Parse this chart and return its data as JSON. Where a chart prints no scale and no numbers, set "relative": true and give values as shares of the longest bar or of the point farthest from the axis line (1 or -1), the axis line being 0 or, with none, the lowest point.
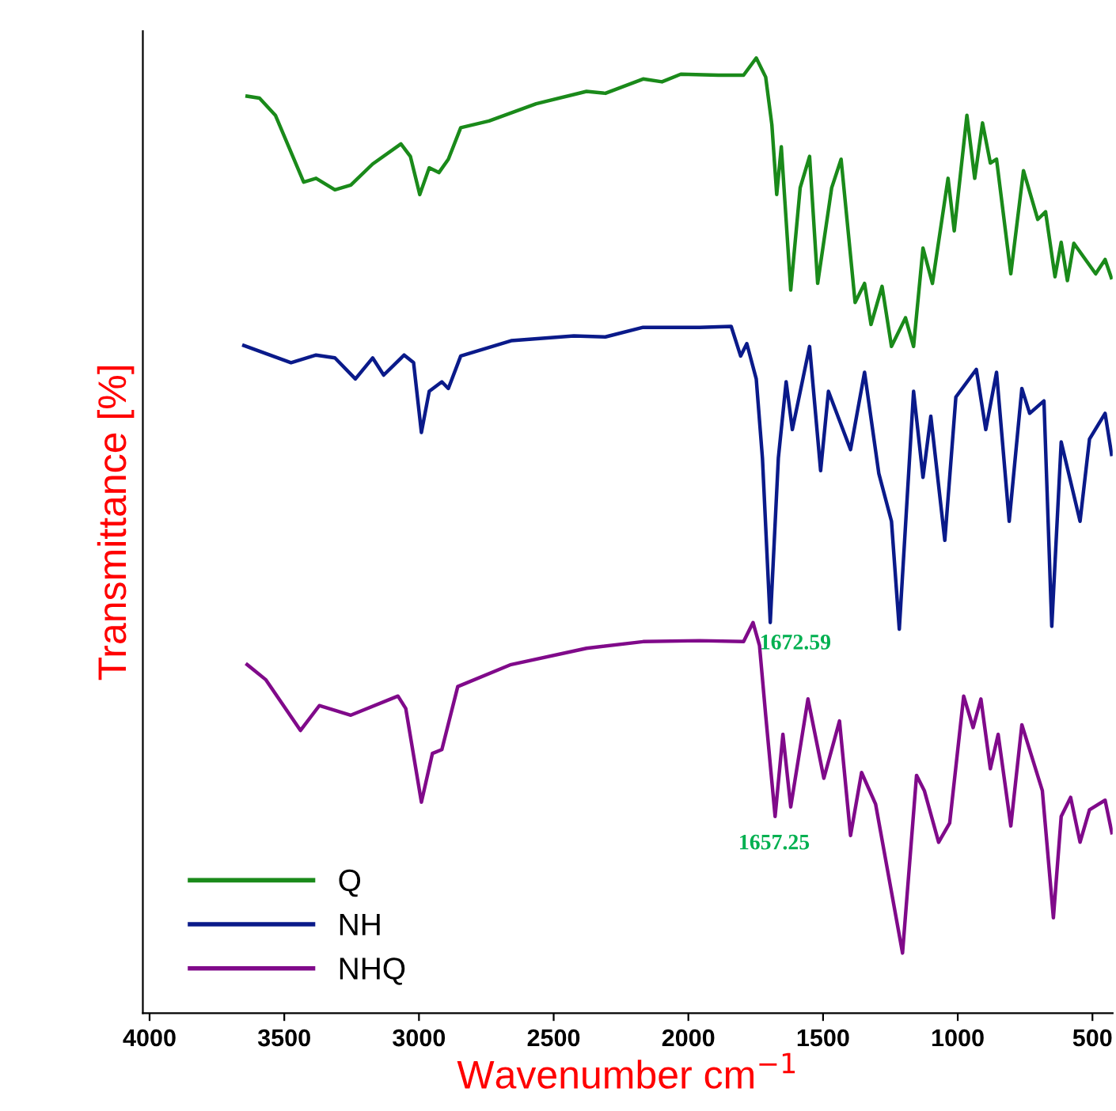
{
  "chart_data": {
    "type": "line",
    "relative": true,
    "xlabel": "Wavenumber cm$^{−1}$",
    "ylabel": "Transmittance [%]",
    "xlim": [
      4025,
      425
    ],
    "xticks": [
      4000,
      3500,
      3000,
      2500,
      2000,
      1500,
      1000,
      500
    ],
    "grid": false,
    "legend": "bottom left",
    "marker": "none",
    "line_style": "solid",
    "annotations": [
      "1672.59",
      {
        "text": "1657.25",
        "x": 1657.25,
        "y": 0.206
      }
    ],
    "series": [
      {
        "name": "Q",
        "color": "#1a8a1a",
        "x": [
          3638,
          3592,
          3533,
          3428,
          3382,
          3312,
          3253,
          3172,
          3067,
          3032,
          2997,
          2962,
          2926,
          2891,
          2845,
          2740,
          2565,
          2378,
          2308,
          2168,
          2098,
          2028,
          1888,
          1795,
          1748,
          1713,
          1690,
          1672,
          1655,
          1620,
          1585,
          1550,
          1520,
          1468,
          1433,
          1381,
          1346,
          1322,
          1281,
          1246,
          1194,
          1164,
          1129,
          1094,
          1036,
          1013,
          966,
          937,
          908,
          879,
          856,
          803,
          756,
          703,
          674,
          639,
          616,
          593,
          569,
          488,
          453,
          430
        ],
        "values": [
          0.96,
          0.958,
          0.94,
          0.87,
          0.874,
          0.862,
          0.867,
          0.889,
          0.91,
          0.897,
          0.857,
          0.885,
          0.88,
          0.894,
          0.927,
          0.934,
          0.952,
          0.965,
          0.963,
          0.978,
          0.975,
          0.983,
          0.982,
          0.982,
          1.0,
          0.98,
          0.93,
          0.857,
          0.907,
          0.757,
          0.864,
          0.897,
          0.764,
          0.864,
          0.894,
          0.744,
          0.764,
          0.721,
          0.761,
          0.698,
          0.728,
          0.698,
          0.801,
          0.764,
          0.874,
          0.819,
          0.94,
          0.874,
          0.932,
          0.89,
          0.894,
          0.774,
          0.882,
          0.831,
          0.839,
          0.771,
          0.807,
          0.767,
          0.806,
          0.774,
          0.789,
          0.77
        ]
      },
      {
        "name": "NH",
        "color": "#0a1a8a",
        "x": [
          3650,
          3475,
          3382,
          3312,
          3236,
          3172,
          3131,
          3055,
          3020,
          2991,
          2962,
          2915,
          2891,
          2845,
          2658,
          2425,
          2308,
          2168,
          1958,
          1841,
          1806,
          1783,
          1748,
          1725,
          1696,
          1666,
          1637,
          1614,
          1550,
          1509,
          1480,
          1398,
          1346,
          1293,
          1246,
          1217,
          1164,
          1129,
          1100,
          1048,
          1007,
          931,
          896,
          856,
          809,
          762,
          733,
          680,
          651,
          616,
          546,
          511,
          453,
          429
        ],
        "values": [
          0.699,
          0.681,
          0.689,
          0.686,
          0.664,
          0.686,
          0.668,
          0.689,
          0.681,
          0.608,
          0.651,
          0.661,
          0.654,
          0.688,
          0.704,
          0.709,
          0.708,
          0.718,
          0.718,
          0.719,
          0.688,
          0.701,
          0.664,
          0.581,
          0.409,
          0.581,
          0.661,
          0.611,
          0.698,
          0.568,
          0.651,
          0.59,
          0.671,
          0.565,
          0.515,
          0.402,
          0.651,
          0.561,
          0.625,
          0.495,
          0.645,
          0.674,
          0.611,
          0.671,
          0.515,
          0.654,
          0.628,
          0.641,
          0.405,
          0.598,
          0.515,
          0.601,
          0.628,
          0.585
        ]
      },
      {
        "name": "NHQ",
        "color": "#800a8a",
        "x": [
          3638,
          3568,
          3440,
          3370,
          3253,
          3078,
          3049,
          2991,
          2950,
          2915,
          2856,
          2658,
          2378,
          2168,
          1958,
          1795,
          1760,
          1736,
          1713,
          1678,
          1649,
          1620,
          1556,
          1497,
          1439,
          1398,
          1357,
          1305,
          1205,
          1153,
          1124,
          1071,
          1030,
          978,
          943,
          914,
          879,
          850,
          803,
          762,
          686,
          645,
          616,
          581,
          546,
          511,
          453,
          428
        ],
        "values": [
          0.365,
          0.349,
          0.296,
          0.322,
          0.312,
          0.332,
          0.319,
          0.221,
          0.272,
          0.276,
          0.342,
          0.365,
          0.382,
          0.389,
          0.39,
          0.389,
          0.409,
          0.385,
          0.312,
          0.206,
          0.292,
          0.216,
          0.329,
          0.246,
          0.306,
          0.186,
          0.252,
          0.219,
          0.063,
          0.249,
          0.233,
          0.179,
          0.199,
          0.332,
          0.299,
          0.329,
          0.256,
          0.292,
          0.196,
          0.302,
          0.233,
          0.1,
          0.206,
          0.226,
          0.179,
          0.213,
          0.223,
          0.189
        ]
      }
    ]
  }
}
